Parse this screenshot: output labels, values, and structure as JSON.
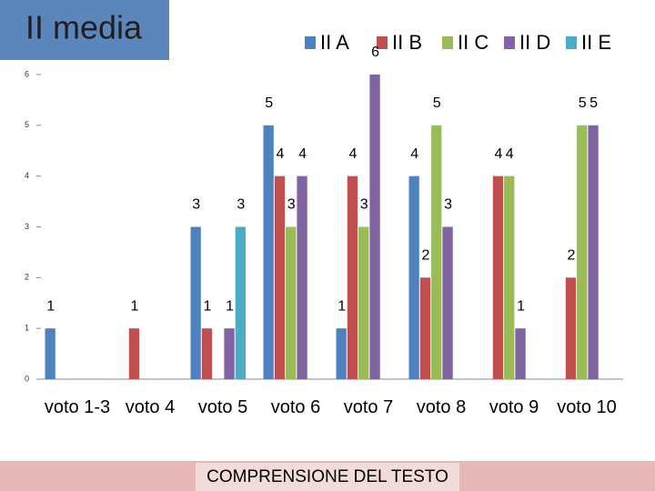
{
  "chart_data": {
    "type": "bar",
    "title": "II media",
    "x_label": "COMPRENSIONE DEL TESTO",
    "categories": [
      "voto 1-3",
      "voto 4",
      "voto 5",
      "voto 6",
      "voto 7",
      "voto 8",
      "voto 9",
      "voto 10"
    ],
    "series": [
      {
        "name": "II A",
        "color": "#4f81bd",
        "values": [
          1,
          null,
          3,
          5,
          1,
          4,
          null,
          null
        ]
      },
      {
        "name": "II B",
        "color": "#c0504d",
        "values": [
          null,
          1,
          1,
          4,
          4,
          2,
          4,
          2
        ]
      },
      {
        "name": "II C",
        "color": "#9bbb59",
        "values": [
          null,
          null,
          null,
          3,
          3,
          5,
          4,
          5
        ]
      },
      {
        "name": "II D",
        "color": "#8064a2",
        "values": [
          null,
          null,
          1,
          4,
          6,
          3,
          1,
          5
        ]
      },
      {
        "name": "II E",
        "color": "#4bacc6",
        "values": [
          null,
          null,
          3,
          null,
          null,
          null,
          null,
          null
        ]
      }
    ],
    "ylim": [
      0,
      6
    ],
    "yticks": [
      0,
      1,
      2,
      3,
      4,
      5,
      6
    ],
    "grid": false,
    "legend_position": "top"
  }
}
